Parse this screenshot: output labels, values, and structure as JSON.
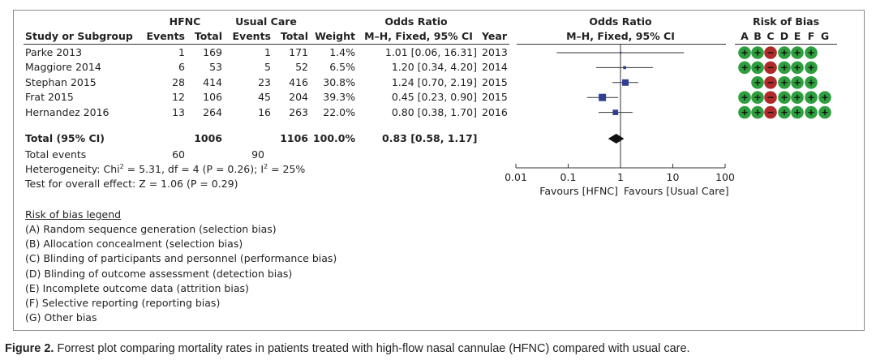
{
  "headers": {
    "group1": "HFNC",
    "group2": "Usual Care",
    "or_group": "Odds Ratio",
    "study": "Study or Subgroup",
    "events": "Events",
    "total": "Total",
    "weight": "Weight",
    "method": "M–H, Fixed, 95% CI",
    "year": "Year",
    "plot_title": "Odds Ratio",
    "plot_method": "M–H, Fixed, 95% CI",
    "rob_title": "Risk of Bias",
    "rob_letters": [
      "A",
      "B",
      "C",
      "D",
      "E",
      "F",
      "G"
    ]
  },
  "studies": [
    {
      "name": "Parke 2013",
      "e1": "1",
      "t1": "169",
      "e2": "1",
      "t2": "171",
      "weight": "1.4%",
      "ci_text": "1.01 [0.06, 16.31]",
      "year": "2013"
    },
    {
      "name": "Maggiore 2014",
      "e1": "6",
      "t1": "53",
      "e2": "5",
      "t2": "52",
      "weight": "6.5%",
      "ci_text": "1.20 [0.34, 4.20]",
      "year": "2014"
    },
    {
      "name": "Stephan 2015",
      "e1": "28",
      "t1": "414",
      "e2": "23",
      "t2": "416",
      "weight": "30.8%",
      "ci_text": "1.24 [0.70, 2.19]",
      "year": "2015"
    },
    {
      "name": "Frat 2015",
      "e1": "12",
      "t1": "106",
      "e2": "45",
      "t2": "204",
      "weight": "39.3%",
      "ci_text": "0.45 [0.23, 0.90]",
      "year": "2015"
    },
    {
      "name": "Hernandez 2016",
      "e1": "13",
      "t1": "264",
      "e2": "16",
      "t2": "263",
      "weight": "22.0%",
      "ci_text": "0.80 [0.38, 1.70]",
      "year": "2016"
    }
  ],
  "total": {
    "label": "Total (95% CI)",
    "t1": "1006",
    "t2": "1106",
    "weight": "100.0%",
    "ci_text": "0.83 [0.58, 1.17]"
  },
  "total_events": {
    "label": "Total events",
    "e1": "60",
    "e2": "90"
  },
  "heterogeneity": {
    "prefix": "Heterogeneity: Chi",
    "mid": " = 5.31, df = 4 (P = 0.26); I",
    "sup": "2",
    "suffix": " = 25%"
  },
  "overall_effect": "Test for overall effect: Z = 1.06 (P = 0.29)",
  "axis": {
    "ticks": [
      0.01,
      0.1,
      1,
      10,
      100
    ],
    "tick_labels": [
      "0.01",
      "0.1",
      "1",
      "10",
      "100"
    ],
    "favours_left": "Favours [HFNC]",
    "favours_right": "Favours [Usual Care]",
    "scale": "log"
  },
  "chart_data": {
    "type": "forest",
    "x_scale": "log",
    "xlim": [
      0.01,
      100
    ],
    "categories": [
      "Parke 2013",
      "Maggiore 2014",
      "Stephan 2015",
      "Frat 2015",
      "Hernandez 2016"
    ],
    "or": [
      1.01,
      1.2,
      1.24,
      0.45,
      0.8
    ],
    "ci_low": [
      0.06,
      0.34,
      0.7,
      0.23,
      0.38
    ],
    "ci_high": [
      16.31,
      4.2,
      2.19,
      0.9,
      1.7
    ],
    "weight_pct": [
      1.4,
      6.5,
      30.8,
      39.3,
      22.0
    ],
    "pooled": {
      "or": 0.83,
      "ci_low": 0.58,
      "ci_high": 1.17
    }
  },
  "risk_of_bias": [
    [
      "+",
      "+",
      "-",
      "+",
      "+",
      "+",
      ""
    ],
    [
      "+",
      "+",
      "-",
      "+",
      "+",
      "+",
      ""
    ],
    [
      "",
      "+",
      "-",
      "+",
      "+",
      "+",
      ""
    ],
    [
      "+",
      "+",
      "-",
      "+",
      "+",
      "+",
      "+"
    ],
    [
      "+",
      "+",
      "-",
      "+",
      "+",
      "+",
      "+"
    ]
  ],
  "rob_colors": {
    "low": "#2e9e3e",
    "high": "#b02a2a",
    "marker": "#2f3f93"
  },
  "legend": {
    "title": "Risk of bias legend",
    "items": [
      {
        "key": "(A)",
        "text": " Random sequence generation (selection bias)"
      },
      {
        "key": "(B)",
        "text": " Allocation concealment (selection bias)"
      },
      {
        "key": "(C)",
        "text": " Blinding of participants and personnel (performance bias)"
      },
      {
        "key": "(D)",
        "text": " Blinding of outcome assessment (detection bias)"
      },
      {
        "key": "(E)",
        "text": " Incomplete outcome data (attrition bias)"
      },
      {
        "key": "(F)",
        "text": " Selective reporting (reporting bias)"
      },
      {
        "key": "(G)",
        "text": " Other bias"
      }
    ]
  },
  "caption": {
    "figno": "Figure 2.",
    "text": " Forrest plot comparing mortality rates in patients treated with high-flow nasal cannulae (HFNC) compared with usual care."
  }
}
